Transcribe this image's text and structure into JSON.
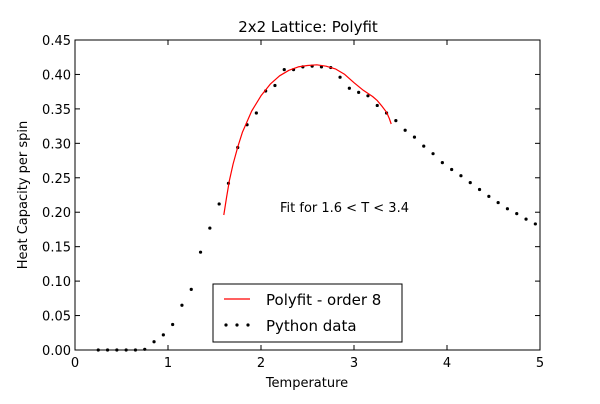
{
  "chart_data": {
    "type": "scatter",
    "title": "2x2 Lattice: Polyfit",
    "xlabel": "Temperature",
    "ylabel": "Heat Capacity per spin",
    "xlim": [
      0,
      5
    ],
    "ylim": [
      0,
      0.45
    ],
    "xticks": [
      "0",
      "1",
      "2",
      "3",
      "4",
      "5"
    ],
    "yticks": [
      "0.00",
      "0.05",
      "0.10",
      "0.15",
      "0.20",
      "0.25",
      "0.30",
      "0.35",
      "0.40",
      "0.45"
    ],
    "annotation": "Fit for 1.6 < T < 3.4",
    "legend": {
      "placement": "lower-center",
      "entries": [
        {
          "label": "Polyfit - order 8",
          "style": "line",
          "color": "#ff0000"
        },
        {
          "label": "Python data",
          "style": "dots",
          "color": "#000000"
        }
      ]
    },
    "series": [
      {
        "name": "Python data",
        "style": "dots",
        "color": "#000000",
        "x": [
          0.25,
          0.35,
          0.45,
          0.55,
          0.65,
          0.75,
          0.85,
          0.95,
          1.05,
          1.15,
          1.25,
          1.35,
          1.45,
          1.55,
          1.65,
          1.75,
          1.85,
          1.95,
          2.05,
          2.15,
          2.25,
          2.35,
          2.45,
          2.55,
          2.65,
          2.75,
          2.85,
          2.95,
          3.05,
          3.15,
          3.25,
          3.35,
          3.45,
          3.55,
          3.65,
          3.75,
          3.85,
          3.95,
          4.05,
          4.15,
          4.25,
          4.35,
          4.45,
          4.55,
          4.65,
          4.75,
          4.85,
          4.95
        ],
        "y": [
          0.0,
          0.0,
          0.0,
          0.0,
          0.0,
          0.001,
          0.012,
          0.022,
          0.037,
          0.065,
          0.088,
          0.142,
          0.177,
          0.212,
          0.242,
          0.294,
          0.327,
          0.344,
          0.376,
          0.384,
          0.407,
          0.407,
          0.411,
          0.412,
          0.411,
          0.41,
          0.396,
          0.38,
          0.374,
          0.369,
          0.355,
          0.344,
          0.333,
          0.319,
          0.309,
          0.296,
          0.285,
          0.272,
          0.262,
          0.253,
          0.243,
          0.233,
          0.223,
          0.214,
          0.205,
          0.198,
          0.19,
          0.183
        ]
      },
      {
        "name": "Polyfit - order 8",
        "style": "line",
        "color": "#ff0000",
        "x": [
          1.6,
          1.63,
          1.66,
          1.7,
          1.75,
          1.8,
          1.9,
          2.0,
          2.1,
          2.2,
          2.3,
          2.4,
          2.5,
          2.6,
          2.7,
          2.8,
          2.9,
          3.0,
          3.1,
          3.2,
          3.25,
          3.3,
          3.35,
          3.38,
          3.4
        ],
        "y": [
          0.196,
          0.222,
          0.246,
          0.27,
          0.295,
          0.316,
          0.347,
          0.369,
          0.386,
          0.398,
          0.406,
          0.411,
          0.413,
          0.414,
          0.412,
          0.408,
          0.4,
          0.388,
          0.377,
          0.368,
          0.362,
          0.354,
          0.345,
          0.336,
          0.328
        ]
      }
    ]
  }
}
